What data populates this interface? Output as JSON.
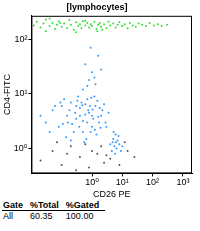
{
  "chart_data": {
    "type": "scatter",
    "title": "[lymphocytes]",
    "x_label": "CD26 PE",
    "y_label": "CD4-FITC",
    "log": true,
    "grid": false,
    "xlim": [
      0.01,
      2000
    ],
    "ylim": [
      0.35,
      270
    ],
    "xticks": [
      {
        "value": 1,
        "label": "10⁰"
      },
      {
        "value": 10,
        "label": "10¹"
      },
      {
        "value": 100,
        "label": "10²"
      },
      {
        "value": 1000,
        "label": "10³"
      }
    ],
    "yticks": [
      {
        "value": 1,
        "label": "10⁰"
      },
      {
        "value": 10,
        "label": "10¹"
      },
      {
        "value": 100,
        "label": "10²"
      }
    ],
    "series": [
      {
        "color": "#555555",
        "marker": "dot",
        "x": [
          0.02,
          0.05,
          0.1,
          0.2,
          0.4,
          0.8,
          1.5,
          2.5,
          4,
          8,
          15,
          25,
          0.07,
          0.3,
          0.6,
          1,
          3,
          12,
          0.15,
          2
        ],
        "values": [
          0.6,
          0.9,
          0.5,
          1.1,
          0.7,
          0.45,
          0.8,
          0.55,
          0.65,
          0.5,
          0.9,
          0.7,
          1.3,
          0.4,
          1.2,
          0.9,
          0.75,
          1.3,
          0.8,
          1.1
        ]
      },
      {
        "color": "#3399ff",
        "marker": "dot",
        "x": [
          0.03,
          0.05,
          0.08,
          0.1,
          0.15,
          0.2,
          0.3,
          0.4,
          0.5,
          0.7,
          1,
          1.3,
          1.7,
          2.2,
          3,
          0.12,
          0.25,
          0.45,
          0.8,
          1.1,
          0.06,
          0.18,
          0.35,
          0.6,
          0.9,
          1.5,
          2,
          2.8,
          0.04,
          0.14,
          0.22,
          0.5,
          0.75,
          1.2,
          1.8,
          2.5,
          0.02,
          0.09,
          0.3,
          0.65,
          1.4,
          0.4,
          0.55,
          0.85,
          1,
          1.6,
          0.28,
          0.7,
          1.25,
          0.16,
          3.5,
          0.2,
          0.38,
          0.95,
          1.9,
          0.11,
          0.6,
          1.05,
          0.48,
          0.33,
          0.5,
          0.8,
          1,
          1.3,
          0.6,
          1.6,
          0.9,
          1.2,
          0.7,
          2,
          4,
          4.5,
          5,
          5.5,
          6,
          6.5,
          7,
          8,
          9,
          5.2,
          6.2,
          7.5,
          4.8,
          10,
          5.8
        ],
        "values": [
          3,
          5,
          2.5,
          6,
          4,
          7,
          3.5,
          5.5,
          2,
          8,
          4,
          6,
          3,
          5,
          2.5,
          8,
          2,
          7,
          4.5,
          3.5,
          6,
          5,
          9,
          6.5,
          2,
          7.5,
          4,
          3,
          2,
          1.6,
          2.8,
          3.2,
          5,
          9,
          5.5,
          6.5,
          4,
          7,
          6,
          1.5,
          1.8,
          4,
          1.3,
          6,
          2.5,
          3.8,
          4.5,
          3,
          2.2,
          3,
          4.5,
          1.4,
          2.5,
          8.5,
          2.4,
          2.8,
          4.2,
          5.2,
          6.2,
          7.5,
          12,
          18,
          25,
          15,
          35,
          50,
          70,
          20,
          14,
          28,
          1.2,
          0.9,
          1.5,
          1.1,
          1.8,
          1,
          1.4,
          1.2,
          0.9,
          2,
          1.3,
          1.7,
          1.3,
          1.1,
          0.8
        ]
      },
      {
        "color": "#33dd33",
        "marker": "dot",
        "x": [
          0.012,
          0.015,
          0.02,
          0.025,
          0.03,
          0.04,
          0.05,
          0.06,
          0.07,
          0.08,
          0.1,
          0.12,
          0.15,
          0.18,
          0.2,
          0.25,
          0.3,
          0.35,
          0.4,
          0.45,
          0.5,
          0.6,
          0.7,
          0.8,
          0.9,
          1,
          1.2,
          1.4,
          1.6,
          1.8,
          2,
          2.5,
          3,
          3.5,
          4,
          5,
          6,
          7,
          8,
          10,
          12,
          15,
          18,
          22,
          28,
          35,
          45,
          60,
          80,
          110,
          150,
          200,
          300,
          0.03,
          0.3,
          1.5,
          0.04,
          0.6,
          2.2,
          0.09
        ],
        "values": [
          180,
          210,
          165,
          195,
          230,
          175,
          200,
          155,
          185,
          215,
          170,
          195,
          160,
          225,
          185,
          150,
          205,
          175,
          190,
          160,
          215,
          180,
          200,
          165,
          190,
          175,
          210,
          155,
          185,
          200,
          170,
          190,
          160,
          210,
          180,
          195,
          165,
          185,
          205,
          175,
          190,
          160,
          200,
          180,
          170,
          195,
          185,
          175,
          200,
          180,
          190,
          175,
          185,
          140,
          135,
          140,
          240,
          220,
          150,
          200
        ]
      }
    ]
  },
  "table": {
    "header": [
      "Gate",
      "%Total",
      "%Gated"
    ],
    "rows": [
      [
        "All",
        "60.35",
        "100.00"
      ]
    ]
  }
}
